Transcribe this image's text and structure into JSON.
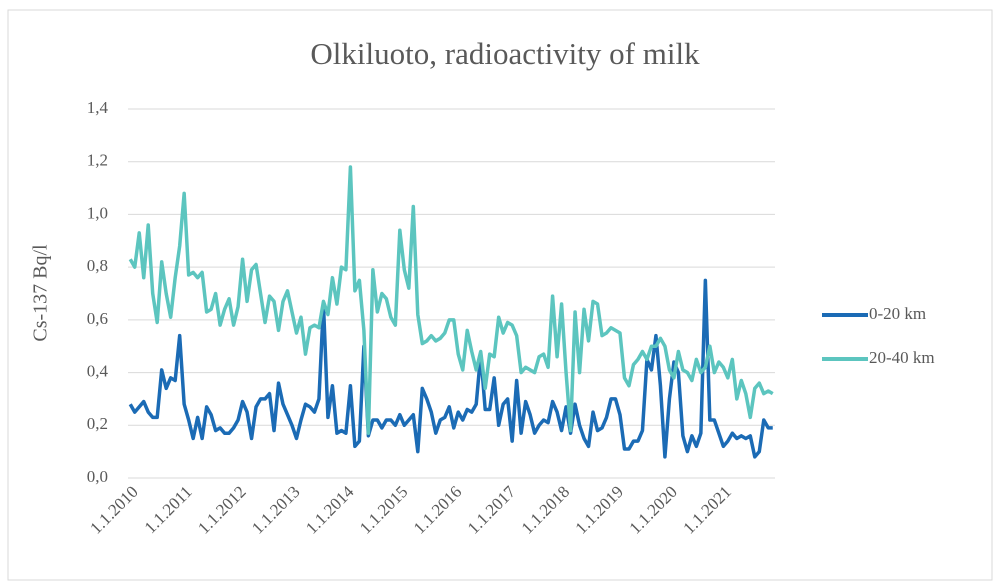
{
  "chart_data": {
    "type": "line",
    "title": "Olkiluoto, radioactivity of milk",
    "y_label": "Cs-137 Bq/l",
    "legend": "right",
    "grid": true,
    "ylim": [
      0,
      1.4
    ],
    "yticks": [
      {
        "value": 0,
        "label": "0,0"
      },
      {
        "value": 0.2,
        "label": "0,2"
      },
      {
        "value": 0.4,
        "label": "0,4"
      },
      {
        "value": 0.6,
        "label": "0,6"
      },
      {
        "value": 0.8,
        "label": "0,8"
      },
      {
        "value": 1.0,
        "label": "1,0"
      },
      {
        "value": 1.2,
        "label": "1,2"
      },
      {
        "value": 1.4,
        "label": "1,4"
      }
    ],
    "categories": [
      "1.1.2010",
      null,
      null,
      null,
      null,
      null,
      null,
      null,
      null,
      null,
      null,
      null,
      "1.1.2011",
      null,
      null,
      null,
      null,
      null,
      null,
      null,
      null,
      null,
      null,
      null,
      "1.1.2012",
      null,
      null,
      null,
      null,
      null,
      null,
      null,
      null,
      null,
      null,
      null,
      "1.1.2013",
      null,
      null,
      null,
      null,
      null,
      null,
      null,
      null,
      null,
      null,
      null,
      "1.1.2014",
      null,
      null,
      null,
      null,
      null,
      null,
      null,
      null,
      null,
      null,
      null,
      "1.1.2015",
      null,
      null,
      null,
      null,
      null,
      null,
      null,
      null,
      null,
      null,
      null,
      "1.1.2016",
      null,
      null,
      null,
      null,
      null,
      null,
      null,
      null,
      null,
      null,
      null,
      "1.1.2017",
      null,
      null,
      null,
      null,
      null,
      null,
      null,
      null,
      null,
      null,
      null,
      "1.1.2018",
      null,
      null,
      null,
      null,
      null,
      null,
      null,
      null,
      null,
      null,
      null,
      "1.1.2019",
      null,
      null,
      null,
      null,
      null,
      null,
      null,
      null,
      null,
      null,
      null,
      "1.1.2020",
      null,
      null,
      null,
      null,
      null,
      null,
      null,
      null,
      null,
      null,
      null,
      "1.1.2021",
      null,
      null,
      null,
      null,
      null,
      null,
      null,
      null,
      null,
      null,
      null
    ],
    "series": [
      {
        "name": "0-20 km",
        "color": "#1b6bb5",
        "values": [
          0.28,
          0.25,
          0.27,
          0.29,
          0.25,
          0.23,
          0.23,
          0.41,
          0.34,
          0.38,
          0.37,
          0.54,
          0.28,
          0.22,
          0.15,
          0.23,
          0.15,
          0.27,
          0.24,
          0.18,
          0.19,
          0.17,
          0.17,
          0.19,
          0.22,
          0.29,
          0.25,
          0.15,
          0.27,
          0.3,
          0.3,
          0.32,
          0.18,
          0.36,
          0.28,
          0.24,
          0.2,
          0.15,
          0.22,
          0.28,
          0.27,
          0.25,
          0.3,
          0.66,
          0.23,
          0.35,
          0.17,
          0.18,
          0.17,
          0.35,
          0.12,
          0.14,
          0.5,
          0.16,
          0.22,
          0.22,
          0.19,
          0.22,
          0.22,
          0.2,
          0.24,
          0.2,
          0.22,
          0.24,
          0.1,
          0.34,
          0.3,
          0.25,
          0.17,
          0.22,
          0.23,
          0.27,
          0.19,
          0.25,
          0.22,
          0.26,
          0.25,
          0.28,
          0.47,
          0.26,
          0.26,
          0.38,
          0.2,
          0.28,
          0.3,
          0.14,
          0.37,
          0.17,
          0.29,
          0.24,
          0.17,
          0.2,
          0.22,
          0.21,
          0.29,
          0.25,
          0.18,
          0.27,
          0.17,
          0.28,
          0.2,
          0.15,
          0.12,
          0.25,
          0.18,
          0.19,
          0.23,
          0.3,
          0.3,
          0.24,
          0.11,
          0.11,
          0.14,
          0.14,
          0.18,
          0.45,
          0.41,
          0.54,
          0.35,
          0.08,
          0.3,
          0.44,
          0.4,
          0.16,
          0.1,
          0.16,
          0.12,
          0.17,
          0.75,
          0.22,
          0.22,
          0.17,
          0.12,
          0.14,
          0.17,
          0.15,
          0.16,
          0.15,
          0.16,
          0.08,
          0.1,
          0.22,
          0.19,
          0.19
        ]
      },
      {
        "name": "20-40 km",
        "color": "#5cc5bf",
        "values": [
          0.83,
          0.8,
          0.93,
          0.76,
          0.96,
          0.7,
          0.59,
          0.82,
          0.7,
          0.61,
          0.76,
          0.88,
          1.08,
          0.77,
          0.78,
          0.76,
          0.78,
          0.63,
          0.64,
          0.7,
          0.58,
          0.64,
          0.68,
          0.58,
          0.65,
          0.83,
          0.67,
          0.79,
          0.81,
          0.7,
          0.59,
          0.69,
          0.67,
          0.56,
          0.67,
          0.71,
          0.63,
          0.55,
          0.61,
          0.47,
          0.57,
          0.58,
          0.57,
          0.67,
          0.62,
          0.76,
          0.66,
          0.8,
          0.79,
          1.18,
          0.71,
          0.75,
          0.56,
          0.17,
          0.79,
          0.63,
          0.7,
          0.68,
          0.61,
          0.58,
          0.94,
          0.79,
          0.72,
          1.03,
          0.62,
          0.51,
          0.52,
          0.54,
          0.52,
          0.53,
          0.55,
          0.6,
          0.6,
          0.47,
          0.41,
          0.56,
          0.48,
          0.41,
          0.48,
          0.34,
          0.47,
          0.46,
          0.61,
          0.55,
          0.59,
          0.58,
          0.54,
          0.4,
          0.42,
          0.41,
          0.4,
          0.46,
          0.47,
          0.42,
          0.69,
          0.46,
          0.66,
          0.4,
          0.18,
          0.63,
          0.4,
          0.64,
          0.52,
          0.67,
          0.66,
          0.54,
          0.55,
          0.57,
          0.56,
          0.55,
          0.38,
          0.35,
          0.43,
          0.45,
          0.48,
          0.45,
          0.5,
          0.5,
          0.53,
          0.5,
          0.41,
          0.38,
          0.48,
          0.41,
          0.4,
          0.37,
          0.45,
          0.4,
          0.42,
          0.5,
          0.4,
          0.44,
          0.42,
          0.38,
          0.45,
          0.3,
          0.37,
          0.32,
          0.23,
          0.34,
          0.36,
          0.32,
          0.33,
          0.32
        ]
      }
    ]
  }
}
